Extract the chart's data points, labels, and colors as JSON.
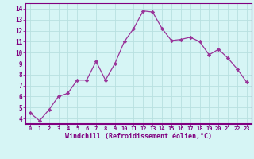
{
  "x": [
    0,
    1,
    2,
    3,
    4,
    5,
    6,
    7,
    8,
    9,
    10,
    11,
    12,
    13,
    14,
    15,
    16,
    17,
    18,
    19,
    20,
    21,
    22,
    23
  ],
  "y": [
    4.5,
    3.8,
    4.8,
    6.0,
    6.3,
    7.5,
    7.5,
    9.2,
    7.5,
    9.0,
    11.0,
    12.2,
    13.8,
    13.7,
    12.2,
    11.1,
    11.2,
    11.4,
    11.0,
    9.8,
    10.3,
    9.5,
    8.5,
    7.3
  ],
  "line_color": "#993399",
  "marker": "D",
  "marker_size": 2.2,
  "linewidth": 0.9,
  "xlabel": "Windchill (Refroidissement éolien,°C)",
  "xlabel_fontsize": 6.0,
  "ylabel_ticks": [
    4,
    5,
    6,
    7,
    8,
    9,
    10,
    11,
    12,
    13,
    14
  ],
  "xtick_labels": [
    "0",
    "1",
    "2",
    "3",
    "4",
    "5",
    "6",
    "7",
    "8",
    "9",
    "10",
    "11",
    "12",
    "13",
    "14",
    "15",
    "16",
    "17",
    "18",
    "19",
    "20",
    "21",
    "22",
    "23"
  ],
  "xlim": [
    -0.5,
    23.5
  ],
  "ylim": [
    3.5,
    14.5
  ],
  "bg_color": "#d6f5f5",
  "grid_color": "#b8e0e0",
  "tick_color": "#800080",
  "label_color": "#800080",
  "tick_fontsize": 5.0,
  "ytick_fontsize": 5.5
}
